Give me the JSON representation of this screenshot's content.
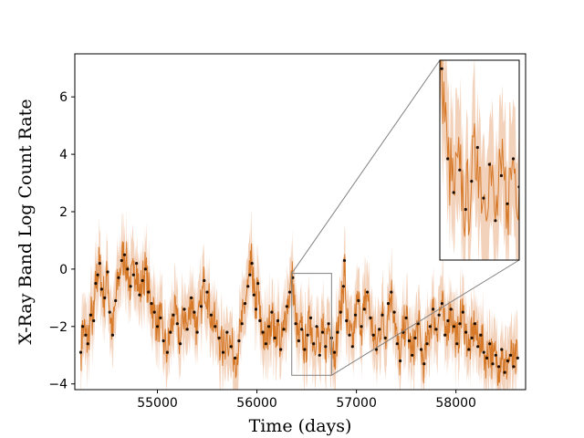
{
  "chart_data": {
    "type": "scatter",
    "title": "",
    "xlabel": "Time (days)",
    "ylabel": "X-Ray Band Log Count Rate",
    "xlim": [
      54170,
      58700
    ],
    "ylim": [
      -4.2,
      7.5
    ],
    "x_ticks": [
      55000,
      56000,
      57000,
      58000
    ],
    "y_ticks": [
      -4,
      -2,
      0,
      2,
      4,
      6
    ],
    "x_tick_labels": [
      "55000",
      "56000",
      "57000",
      "58000"
    ],
    "y_tick_labels": [
      "−4",
      "−2",
      "0",
      "2",
      "4",
      "6"
    ],
    "grid": false,
    "colors": {
      "points": "#1a0d00",
      "model_line": "#d67a2a",
      "band": "#e8a57a",
      "inset_border": "#808080"
    },
    "zoom_region": {
      "x": [
        56350,
        56750
      ],
      "y": [
        -3.7,
        -0.15
      ]
    },
    "series": [
      {
        "values": [
          [
            54230,
            -2.9
          ],
          [
            54250,
            -2.0
          ],
          [
            54280,
            -2.3
          ],
          [
            54300,
            -2.6
          ],
          [
            54330,
            -1.6
          ],
          [
            54360,
            -1.8
          ],
          [
            54380,
            -0.5
          ],
          [
            54400,
            -0.2
          ],
          [
            54420,
            0.2
          ],
          [
            54440,
            -0.7
          ],
          [
            54470,
            -1.0
          ],
          [
            54500,
            -0.1
          ],
          [
            54520,
            -1.5
          ],
          [
            54550,
            -2.3
          ],
          [
            54580,
            -1.1
          ],
          [
            54610,
            -0.3
          ],
          [
            54640,
            0.3
          ],
          [
            54670,
            0.5
          ],
          [
            54700,
            0.0
          ],
          [
            54730,
            -0.6
          ],
          [
            54760,
            -0.2
          ],
          [
            54790,
            0.2
          ],
          [
            54820,
            -0.9
          ],
          [
            54850,
            -0.4
          ],
          [
            54880,
            0.0
          ],
          [
            54910,
            -0.8
          ],
          [
            54940,
            -1.2
          ],
          [
            54970,
            -1.5
          ],
          [
            55000,
            -2.0
          ],
          [
            55030,
            -1.7
          ],
          [
            55060,
            -2.5
          ],
          [
            55100,
            -2.9
          ],
          [
            55130,
            -2.2
          ],
          [
            55160,
            -1.6
          ],
          [
            55200,
            -1.9
          ],
          [
            55230,
            -2.6
          ],
          [
            55270,
            -1.4
          ],
          [
            55300,
            -2.1
          ],
          [
            55340,
            -1.0
          ],
          [
            55370,
            -1.5
          ],
          [
            55400,
            -2.2
          ],
          [
            55440,
            -1.3
          ],
          [
            55470,
            -0.4
          ],
          [
            55500,
            -0.8
          ],
          [
            55540,
            -1.6
          ],
          [
            55580,
            -2.0
          ],
          [
            55620,
            -2.4
          ],
          [
            55660,
            -2.9
          ],
          [
            55700,
            -2.2
          ],
          [
            55740,
            -2.7
          ],
          [
            55780,
            -3.1
          ],
          [
            55820,
            -2.5
          ],
          [
            55850,
            -1.9
          ],
          [
            55880,
            -1.2
          ],
          [
            55910,
            -0.6
          ],
          [
            55930,
            -0.2
          ],
          [
            55950,
            0.2
          ],
          [
            55970,
            -0.9
          ],
          [
            55990,
            -1.4
          ],
          [
            56010,
            -0.5
          ],
          [
            56030,
            -1.8
          ],
          [
            56060,
            -2.2
          ],
          [
            56090,
            -2.6
          ],
          [
            56120,
            -2.0
          ],
          [
            56150,
            -1.5
          ],
          [
            56180,
            -2.4
          ],
          [
            56210,
            -1.8
          ],
          [
            56240,
            -2.8
          ],
          [
            56270,
            -2.1
          ],
          [
            56300,
            -1.3
          ],
          [
            56330,
            -0.8
          ],
          [
            56360,
            -0.3
          ],
          [
            56390,
            -1.9
          ],
          [
            56420,
            -2.5
          ],
          [
            56450,
            -2.1
          ],
          [
            56480,
            -2.8
          ],
          [
            56510,
            -2.3
          ],
          [
            56540,
            -1.7
          ],
          [
            56570,
            -2.6
          ],
          [
            56600,
            -2.0
          ],
          [
            56630,
            -3.0
          ],
          [
            56660,
            -2.2
          ],
          [
            56690,
            -2.7
          ],
          [
            56720,
            -1.9
          ],
          [
            56750,
            -2.4
          ],
          [
            56780,
            -2.9
          ],
          [
            56810,
            -2.2
          ],
          [
            56840,
            -1.5
          ],
          [
            56870,
            -0.6
          ],
          [
            56880,
            0.3
          ],
          [
            56900,
            -1.8
          ],
          [
            56930,
            -2.3
          ],
          [
            56960,
            -2.7
          ],
          [
            56990,
            -1.6
          ],
          [
            57020,
            -1.1
          ],
          [
            57050,
            -2.0
          ],
          [
            57080,
            -1.4
          ],
          [
            57110,
            -0.8
          ],
          [
            57140,
            -1.7
          ],
          [
            57170,
            -2.3
          ],
          [
            57200,
            -2.8
          ],
          [
            57230,
            -2.1
          ],
          [
            57260,
            -1.6
          ],
          [
            57290,
            -2.4
          ],
          [
            57320,
            -1.2
          ],
          [
            57350,
            -0.8
          ],
          [
            57380,
            -1.5
          ],
          [
            57410,
            -2.6
          ],
          [
            57440,
            -3.2
          ],
          [
            57470,
            -2.2
          ],
          [
            57500,
            -1.7
          ],
          [
            57530,
            -2.5
          ],
          [
            57560,
            -3.0
          ],
          [
            57590,
            -2.4
          ],
          [
            57620,
            -1.9
          ],
          [
            57650,
            -2.8
          ],
          [
            57680,
            -3.3
          ],
          [
            57710,
            -2.6
          ],
          [
            57740,
            -2.0
          ],
          [
            57770,
            -1.4
          ],
          [
            57800,
            -2.1
          ],
          [
            57830,
            -1.6
          ],
          [
            57860,
            -1.2
          ],
          [
            57890,
            -2.3
          ],
          [
            57920,
            -1.8
          ],
          [
            57950,
            -1.4
          ],
          [
            57980,
            -2.0
          ],
          [
            58010,
            -2.6
          ],
          [
            58040,
            -1.9
          ],
          [
            58070,
            -1.5
          ],
          [
            58100,
            -2.2
          ],
          [
            58130,
            -2.8
          ],
          [
            58160,
            -2.4
          ],
          [
            58190,
            -1.9
          ],
          [
            58220,
            -2.7
          ],
          [
            58250,
            -2.3
          ],
          [
            58280,
            -2.9
          ],
          [
            58310,
            -3.1
          ],
          [
            58340,
            -2.6
          ],
          [
            58370,
            -3.3
          ],
          [
            58400,
            -3.0
          ],
          [
            58430,
            -3.4
          ],
          [
            58460,
            -2.8
          ],
          [
            58490,
            -3.6
          ],
          [
            58520,
            -3.2
          ],
          [
            58550,
            -3.0
          ],
          [
            58580,
            -3.4
          ],
          [
            58620,
            -3.1
          ]
        ]
      }
    ]
  }
}
